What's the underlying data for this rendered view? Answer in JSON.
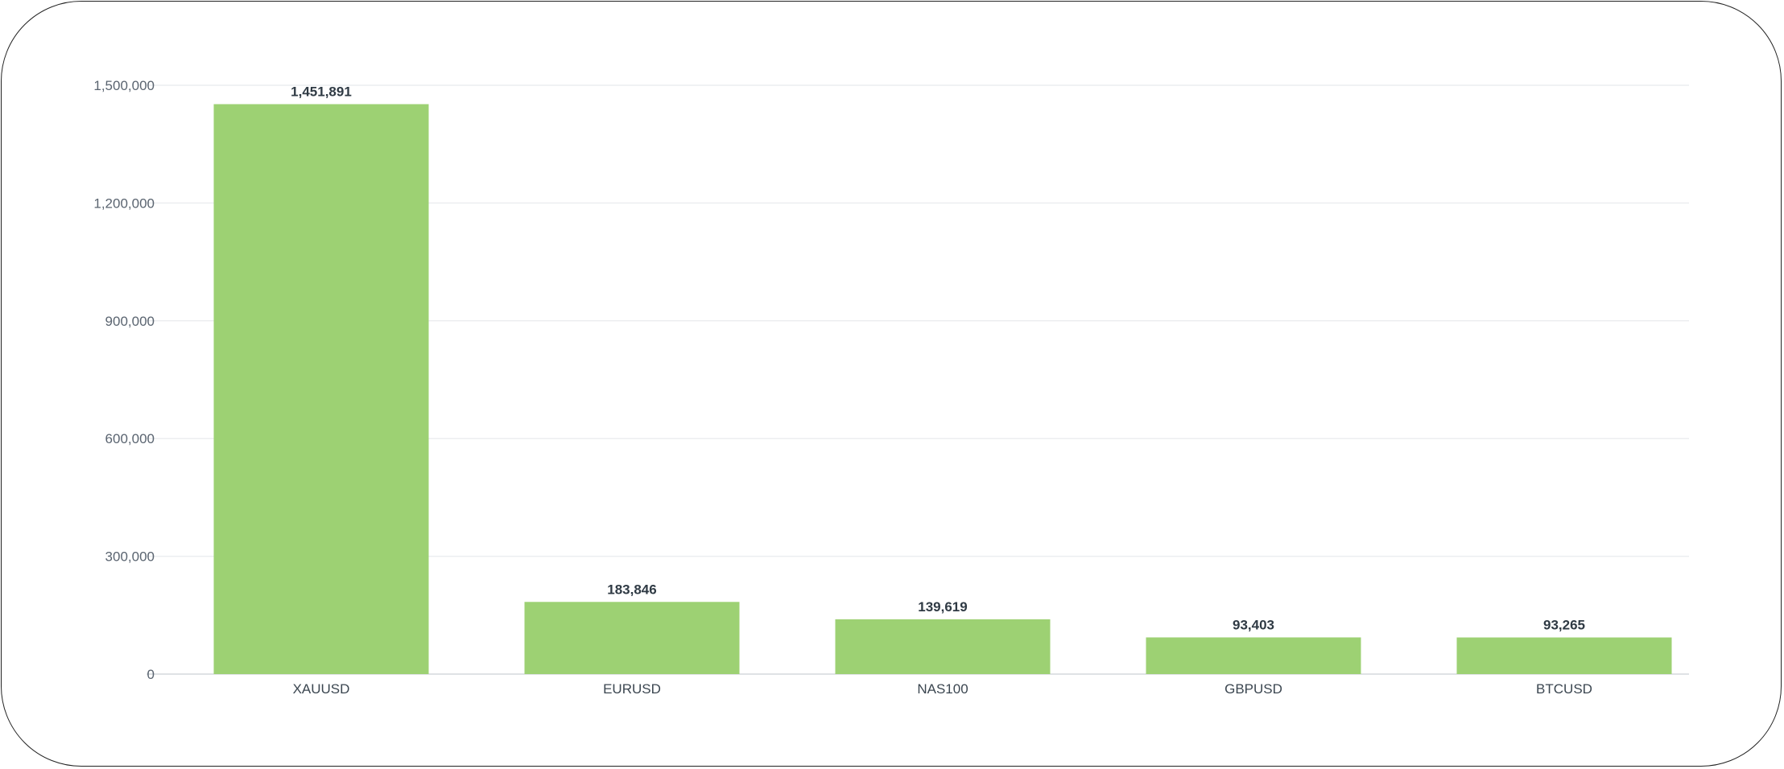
{
  "chart_data": {
    "type": "bar",
    "title": "",
    "xlabel": "",
    "ylabel": "",
    "categories": [
      "XAUUSD",
      "EURUSD",
      "NAS100",
      "GBPUSD",
      "BTCUSD"
    ],
    "values": [
      1451891,
      183846,
      139619,
      93403,
      93265
    ],
    "value_labels": [
      "1,451,891",
      "183,846",
      "139,619",
      "93,403",
      "93,265"
    ],
    "ylim": [
      0,
      1500000
    ],
    "yticks": [
      0,
      300000,
      600000,
      900000,
      1200000,
      1500000
    ],
    "ytick_labels": [
      "0",
      "300,000",
      "600,000",
      "900,000",
      "1,200,000",
      "1,500,000"
    ],
    "grid": true,
    "legend": "none",
    "colors": {
      "bar": "#9dd173",
      "grid": "#eceef0"
    }
  }
}
